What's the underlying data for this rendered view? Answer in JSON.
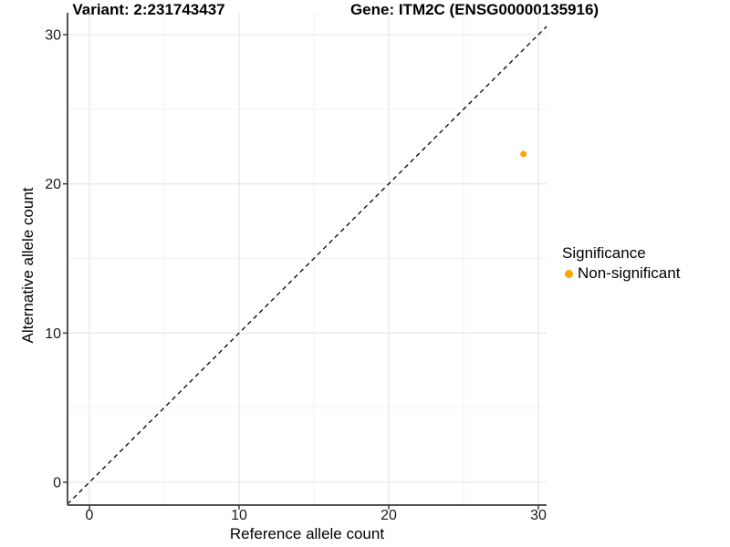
{
  "chart_data": {
    "type": "scatter",
    "title_left": "Variant: 2:231743437",
    "title_right": "Gene: ITM2C (ENSG00000135916)",
    "xlabel": "Reference allele count",
    "ylabel": "Alternative allele count",
    "x_ticks": [
      0,
      10,
      20,
      30
    ],
    "y_ticks": [
      0,
      10,
      20,
      30
    ],
    "x_minor_ticks": [
      5,
      15,
      25
    ],
    "y_minor_ticks": [
      5,
      15,
      25
    ],
    "xlim": [
      -1.46,
      30.55
    ],
    "ylim": [
      -1.53,
      31.46
    ],
    "grid": true,
    "legend_position": "right",
    "reference_line": {
      "slope": 1,
      "intercept": 0,
      "style": "dashed",
      "color": "#000000"
    },
    "series": [
      {
        "name": "Non-significant",
        "color": "#FFA500",
        "points": [
          {
            "x": 29,
            "y": 22
          }
        ]
      }
    ],
    "legend": {
      "title": "Significance",
      "entries": [
        {
          "label": "Non-significant",
          "color": "#FFA500"
        }
      ]
    },
    "style": {
      "grid_major_color": "#E4E4E4",
      "grid_minor_color": "#F1F1F1",
      "axis_line_color": "#555555",
      "tick_color": "#333333",
      "tick_label_color": "#1a1a1a",
      "point_radius": 3.5
    }
  }
}
